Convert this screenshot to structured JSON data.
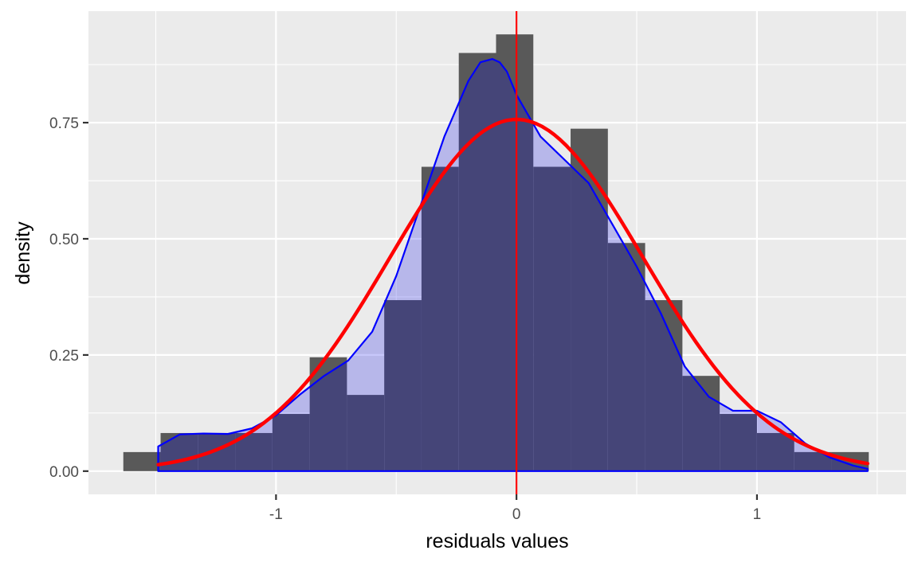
{
  "chart_data": {
    "type": "bar",
    "subtype": "histogram-with-density",
    "xlabel": "residuals values",
    "ylabel": "density",
    "xlim": [
      -1.78,
      1.62
    ],
    "ylim": [
      -0.05,
      0.99
    ],
    "x_ticks": [
      {
        "value": -1,
        "label": "-1"
      },
      {
        "value": 0,
        "label": "0"
      },
      {
        "value": 1,
        "label": "1"
      }
    ],
    "x_minor": [
      -1.5,
      -0.5,
      0.5,
      1.5
    ],
    "y_ticks": [
      {
        "value": 0,
        "label": "0.00"
      },
      {
        "value": 0.25,
        "label": "0.25"
      },
      {
        "value": 0.5,
        "label": "0.50"
      },
      {
        "value": 0.75,
        "label": "0.75"
      }
    ],
    "y_minor": [
      0.125,
      0.375,
      0.625,
      0.875
    ],
    "grid": true,
    "histogram": {
      "bin_width": 0.155,
      "color": "#595959",
      "bins": [
        {
          "x0": -1.635,
          "x1": -1.48,
          "density": 0.041
        },
        {
          "x0": -1.48,
          "x1": -1.325,
          "density": 0.082
        },
        {
          "x0": -1.325,
          "x1": -1.17,
          "density": 0.082
        },
        {
          "x0": -1.17,
          "x1": -1.015,
          "density": 0.082
        },
        {
          "x0": -1.015,
          "x1": -0.86,
          "density": 0.123
        },
        {
          "x0": -0.86,
          "x1": -0.705,
          "density": 0.245
        },
        {
          "x0": -0.705,
          "x1": -0.55,
          "density": 0.164
        },
        {
          "x0": -0.55,
          "x1": -0.395,
          "density": 0.368
        },
        {
          "x0": -0.395,
          "x1": -0.24,
          "density": 0.655
        },
        {
          "x0": -0.24,
          "x1": -0.085,
          "density": 0.9
        },
        {
          "x0": -0.085,
          "x1": 0.07,
          "density": 0.94
        },
        {
          "x0": 0.07,
          "x1": 0.225,
          "density": 0.655
        },
        {
          "x0": 0.225,
          "x1": 0.38,
          "density": 0.737
        },
        {
          "x0": 0.38,
          "x1": 0.535,
          "density": 0.491
        },
        {
          "x0": 0.535,
          "x1": 0.69,
          "density": 0.368
        },
        {
          "x0": 0.69,
          "x1": 0.845,
          "density": 0.205
        },
        {
          "x0": 0.845,
          "x1": 1.0,
          "density": 0.123
        },
        {
          "x0": 1.0,
          "x1": 1.155,
          "density": 0.082
        },
        {
          "x0": 1.155,
          "x1": 1.31,
          "density": 0.041
        },
        {
          "x0": 1.31,
          "x1": 1.465,
          "density": 0.041
        }
      ]
    },
    "kernel_density": {
      "line_color": "#0000ff",
      "fill_color": "#0000e6",
      "fill_opacity": 0.22,
      "x": [
        -1.49,
        -1.4,
        -1.3,
        -1.2,
        -1.1,
        -1.0,
        -0.9,
        -0.8,
        -0.7,
        -0.6,
        -0.5,
        -0.4,
        -0.3,
        -0.2,
        -0.15,
        -0.1,
        -0.07,
        -0.04,
        0.0,
        0.1,
        0.2,
        0.3,
        0.4,
        0.5,
        0.6,
        0.7,
        0.8,
        0.9,
        1.0,
        1.1,
        1.2,
        1.3,
        1.4,
        1.46
      ],
      "y": [
        0.053,
        0.079,
        0.081,
        0.08,
        0.092,
        0.12,
        0.165,
        0.205,
        0.238,
        0.3,
        0.42,
        0.57,
        0.72,
        0.84,
        0.88,
        0.887,
        0.88,
        0.86,
        0.81,
        0.72,
        0.67,
        0.62,
        0.53,
        0.44,
        0.34,
        0.225,
        0.16,
        0.13,
        0.13,
        0.105,
        0.06,
        0.03,
        0.012,
        0.005
      ]
    },
    "normal_density": {
      "color": "#ff0000",
      "mean": 0.0,
      "sd": 0.527,
      "x_range": [
        -1.49,
        1.46
      ]
    },
    "vline": {
      "x": 0,
      "color": "#ff0000"
    }
  }
}
